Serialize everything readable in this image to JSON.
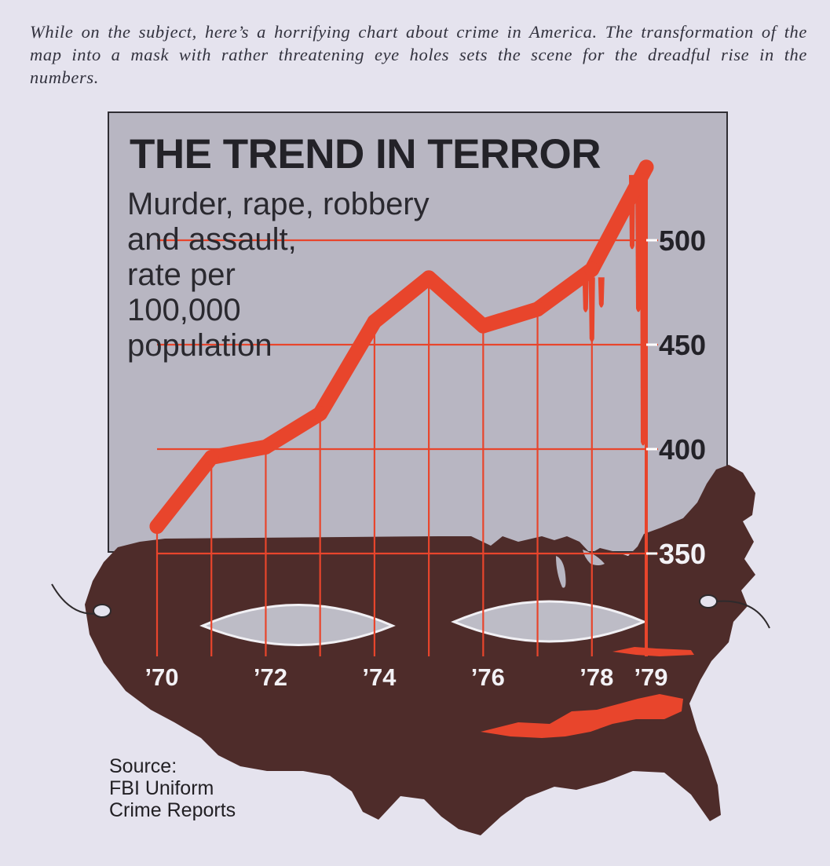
{
  "caption": "While on the subject, here’s a horrifying chart about crime in America. The transformation of the map into a mask with rather threatening eye holes sets the scene for the dreadful rise in the numbers.",
  "chart_data": {
    "type": "line",
    "title": "THE TREND IN TERROR",
    "subtitle_lines": [
      "Murder, rape, robbery",
      "and assault,",
      "rate per",
      "100,000",
      "population"
    ],
    "x": [
      1970,
      1971,
      1972,
      1973,
      1974,
      1975,
      1976,
      1977,
      1978,
      1979
    ],
    "x_tick_labels": [
      {
        "x": 1970,
        "label": "’70"
      },
      {
        "x": 1972,
        "label": "’72"
      },
      {
        "x": 1974,
        "label": "’74"
      },
      {
        "x": 1976,
        "label": "’76"
      },
      {
        "x": 1978,
        "label": "’78"
      },
      {
        "x": 1979,
        "label": "’79"
      }
    ],
    "series": [
      {
        "values": [
          363,
          396,
          401,
          417,
          461,
          482,
          459,
          467,
          486,
          535
        ]
      }
    ],
    "y_ticks": [
      350,
      400,
      450,
      500
    ],
    "ylim": [
      350,
      535
    ],
    "grid": true,
    "source": [
      "Source:",
      "FBI Uniform",
      "Crime Reports"
    ]
  },
  "colors": {
    "background": "#e5e3ee",
    "panel": "#b8b6c2",
    "map": "#4e2c2a",
    "blood": "#e8452c",
    "eye": "#bdbcc6",
    "text": "#232228",
    "axis_label": "#f3f2f6"
  }
}
